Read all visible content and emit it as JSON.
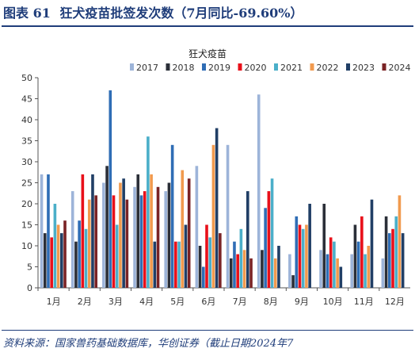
{
  "caption": {
    "figure_no": "图表 61",
    "title": "狂犬疫苗批签发次数（7月同比-69.60%）"
  },
  "source": "资料来源：国家兽药基础数据库，华创证券（截止日期2024年7",
  "chart_data": {
    "type": "bar",
    "title": "狂犬疫苗",
    "ylim": [
      0,
      50
    ],
    "yticks": [
      0,
      5,
      10,
      15,
      20,
      25,
      30,
      35,
      40,
      45,
      50
    ],
    "grid": false,
    "legend_position": "top-right",
    "categories": [
      "1月",
      "2月",
      "3月",
      "4月",
      "5月",
      "6月",
      "7月",
      "8月",
      "9月",
      "10月",
      "11月",
      "12月"
    ],
    "series": [
      {
        "name": "2017",
        "color": "#9db4d9",
        "values": [
          27,
          23,
          25,
          24,
          23,
          29,
          34,
          46,
          8,
          9,
          8,
          7
        ]
      },
      {
        "name": "2018",
        "color": "#2b2f38",
        "values": [
          13,
          11,
          29,
          27,
          25,
          10,
          7,
          9,
          3,
          20,
          15,
          17
        ]
      },
      {
        "name": "2019",
        "color": "#2f6db5",
        "values": [
          27,
          16,
          47,
          22,
          34,
          5,
          11,
          19,
          17,
          8,
          11,
          13
        ]
      },
      {
        "name": "2020",
        "color": "#e8101a",
        "values": [
          12,
          27,
          22,
          23,
          11,
          15,
          8,
          23,
          15,
          12,
          17,
          14
        ]
      },
      {
        "name": "2021",
        "color": "#4bafc9",
        "values": [
          20,
          14,
          15,
          36,
          11,
          12,
          14,
          26,
          14,
          11,
          8,
          17
        ]
      },
      {
        "name": "2022",
        "color": "#f19a4e",
        "values": [
          15,
          21,
          25,
          27,
          28,
          34,
          9,
          7,
          15,
          7,
          10,
          22
        ]
      },
      {
        "name": "2023",
        "color": "#213f66",
        "values": [
          13,
          27,
          26,
          11,
          15,
          38,
          23,
          10,
          20,
          5,
          21,
          13
        ]
      },
      {
        "name": "2024",
        "color": "#7a2325",
        "values": [
          16,
          22,
          21,
          24,
          26,
          13,
          7,
          null,
          null,
          null,
          null,
          null
        ]
      }
    ]
  }
}
